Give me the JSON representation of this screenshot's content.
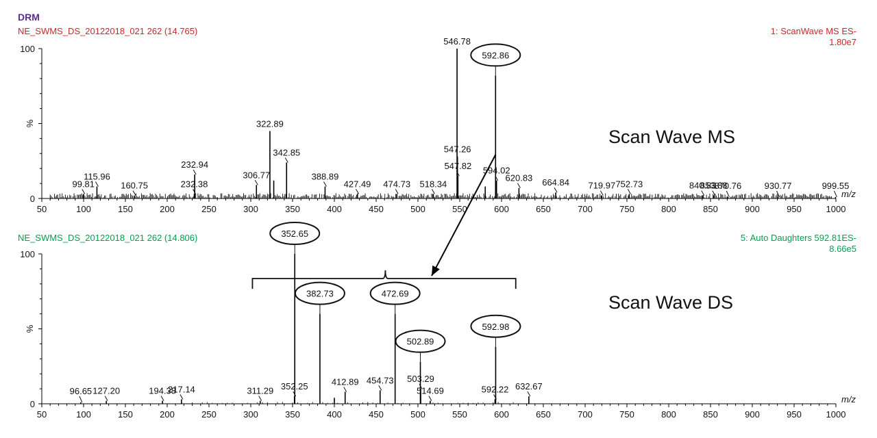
{
  "header": {
    "brand": "DRM",
    "brand_color": "#5b2d8e"
  },
  "colors": {
    "panel1_text": "#d2232a",
    "panel2_text": "#00a14b",
    "axis": "#000000",
    "peak": "#000000",
    "arrow": "#000000"
  },
  "chart_data": [
    {
      "type": "bar",
      "kind": "mass-spectrum",
      "panel_label": "Scan Wave MS",
      "file_info": "NE_SWMS_DS_20122018_021 262 (14.765)",
      "function_info": "1: ScanWave MS ES-",
      "intensity": "1.80e7",
      "ylabel": "%",
      "xlabel": "m/z",
      "xlim": [
        50,
        1000
      ],
      "ylim": [
        0,
        100
      ],
      "x_ticks": [
        50,
        100,
        150,
        200,
        250,
        300,
        350,
        400,
        450,
        500,
        550,
        600,
        650,
        700,
        750,
        800,
        850,
        900,
        950,
        1000
      ],
      "y_ticks": [
        0,
        100
      ],
      "peaks": [
        {
          "x": 99.81,
          "y": 3,
          "label": "99.81"
        },
        {
          "x": 115.96,
          "y": 8,
          "label": "115.96"
        },
        {
          "x": 160.75,
          "y": 2,
          "label": "160.75"
        },
        {
          "x": 232.38,
          "y": 3,
          "label": "232.38"
        },
        {
          "x": 232.94,
          "y": 16,
          "label": "232.94"
        },
        {
          "x": 306.77,
          "y": 9,
          "label": "306.77"
        },
        {
          "x": 322.89,
          "y": 45,
          "label": "322.89"
        },
        {
          "x": 327.5,
          "y": 12,
          "label": ""
        },
        {
          "x": 342.85,
          "y": 24,
          "label": "342.85"
        },
        {
          "x": 388.89,
          "y": 8,
          "label": "388.89"
        },
        {
          "x": 427.49,
          "y": 3,
          "label": "427.49"
        },
        {
          "x": 474.73,
          "y": 3,
          "label": "474.73"
        },
        {
          "x": 518.34,
          "y": 3,
          "label": "518.34"
        },
        {
          "x": 546.78,
          "y": 100,
          "label": "546.78"
        },
        {
          "x": 547.26,
          "y": 28,
          "label": "547.26"
        },
        {
          "x": 547.82,
          "y": 15,
          "label": "547.82"
        },
        {
          "x": 580.5,
          "y": 8,
          "label": ""
        },
        {
          "x": 592.86,
          "y": 82,
          "label": "592.86",
          "circled": true
        },
        {
          "x": 594.02,
          "y": 12,
          "label": "594.02"
        },
        {
          "x": 620.83,
          "y": 7,
          "label": "620.83"
        },
        {
          "x": 664.84,
          "y": 4,
          "label": "664.84"
        },
        {
          "x": 719.97,
          "y": 2,
          "label": "719.97"
        },
        {
          "x": 752.73,
          "y": 3,
          "label": "752.73"
        },
        {
          "x": 840.83,
          "y": 2,
          "label": "840.83"
        },
        {
          "x": 853.88,
          "y": 2,
          "label": "853.88"
        },
        {
          "x": 870.76,
          "y": 1,
          "label": "870.76"
        },
        {
          "x": 930.77,
          "y": 1,
          "label": "930.77"
        },
        {
          "x": 999.55,
          "y": 1,
          "label": "999.55"
        }
      ]
    },
    {
      "type": "bar",
      "kind": "mass-spectrum",
      "panel_label": "Scan Wave DS",
      "file_info": "NE_SWMS_DS_20122018_021 262 (14.806)",
      "function_info": "5: Auto Daughters 592.81ES-",
      "intensity": "8.66e5",
      "ylabel": "%",
      "xlabel": "m/z",
      "xlim": [
        50,
        1000
      ],
      "ylim": [
        0,
        100
      ],
      "x_ticks": [
        50,
        100,
        150,
        200,
        250,
        300,
        350,
        400,
        450,
        500,
        550,
        600,
        650,
        700,
        750,
        800,
        850,
        900,
        950,
        1000
      ],
      "y_ticks": [
        0,
        100
      ],
      "peaks": [
        {
          "x": 96.65,
          "y": 1,
          "label": "96.65"
        },
        {
          "x": 127.2,
          "y": 2,
          "label": "127.20"
        },
        {
          "x": 194.38,
          "y": 2,
          "label": "194.38"
        },
        {
          "x": 217.14,
          "y": 3,
          "label": "217.14"
        },
        {
          "x": 311.29,
          "y": 2,
          "label": "311.29"
        },
        {
          "x": 352.25,
          "y": 5,
          "label": "352.25"
        },
        {
          "x": 352.65,
          "y": 100,
          "label": "352.65",
          "circled": true
        },
        {
          "x": 382.73,
          "y": 60,
          "label": "382.73",
          "circled": true
        },
        {
          "x": 400,
          "y": 4,
          "label": ""
        },
        {
          "x": 412.89,
          "y": 8,
          "label": "412.89"
        },
        {
          "x": 454.73,
          "y": 9,
          "label": "454.73"
        },
        {
          "x": 472.69,
          "y": 60,
          "label": "472.69",
          "circled": true
        },
        {
          "x": 502.89,
          "y": 28,
          "label": "502.89",
          "circled": true
        },
        {
          "x": 503.29,
          "y": 10,
          "label": "503.29"
        },
        {
          "x": 514.69,
          "y": 2,
          "label": "514.69"
        },
        {
          "x": 592.22,
          "y": 3,
          "label": "592.22"
        },
        {
          "x": 592.98,
          "y": 38,
          "label": "592.98",
          "circled": true
        },
        {
          "x": 632.67,
          "y": 5,
          "label": "632.67"
        }
      ],
      "bracket": {
        "x_start": 302,
        "x_end": 617,
        "peak_x": 461
      }
    }
  ],
  "annotations": {
    "arrow": {
      "from_x": 592.86,
      "to_panel": "Scan Wave DS"
    }
  }
}
